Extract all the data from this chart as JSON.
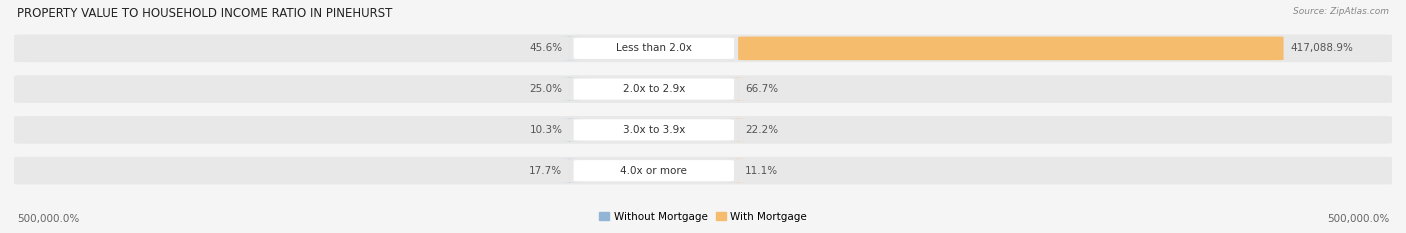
{
  "title": "PROPERTY VALUE TO HOUSEHOLD INCOME RATIO IN PINEHURST",
  "source": "Source: ZipAtlas.com",
  "categories": [
    "Less than 2.0x",
    "2.0x to 2.9x",
    "3.0x to 3.9x",
    "4.0x or more"
  ],
  "without_mortgage": [
    45.6,
    25.0,
    10.3,
    17.7
  ],
  "with_mortgage": [
    417088.9,
    66.7,
    22.2,
    11.1
  ],
  "without_mortgage_labels": [
    "45.6%",
    "25.0%",
    "10.3%",
    "17.7%"
  ],
  "with_mortgage_labels": [
    "417,088.9%",
    "66.7%",
    "22.2%",
    "11.1%"
  ],
  "color_without": "#92b4d5",
  "color_with": "#f5bc6e",
  "bg_row": "#e8e8e8",
  "bg_figure": "#f5f5f5",
  "x_left_label": "500,000.0%",
  "x_right_label": "500,000.0%",
  "legend_without": "Without Mortgage",
  "legend_with": "With Mortgage",
  "max_val": 500000.0,
  "title_fontsize": 8.5,
  "label_fontsize": 7.5,
  "source_fontsize": 6.5
}
